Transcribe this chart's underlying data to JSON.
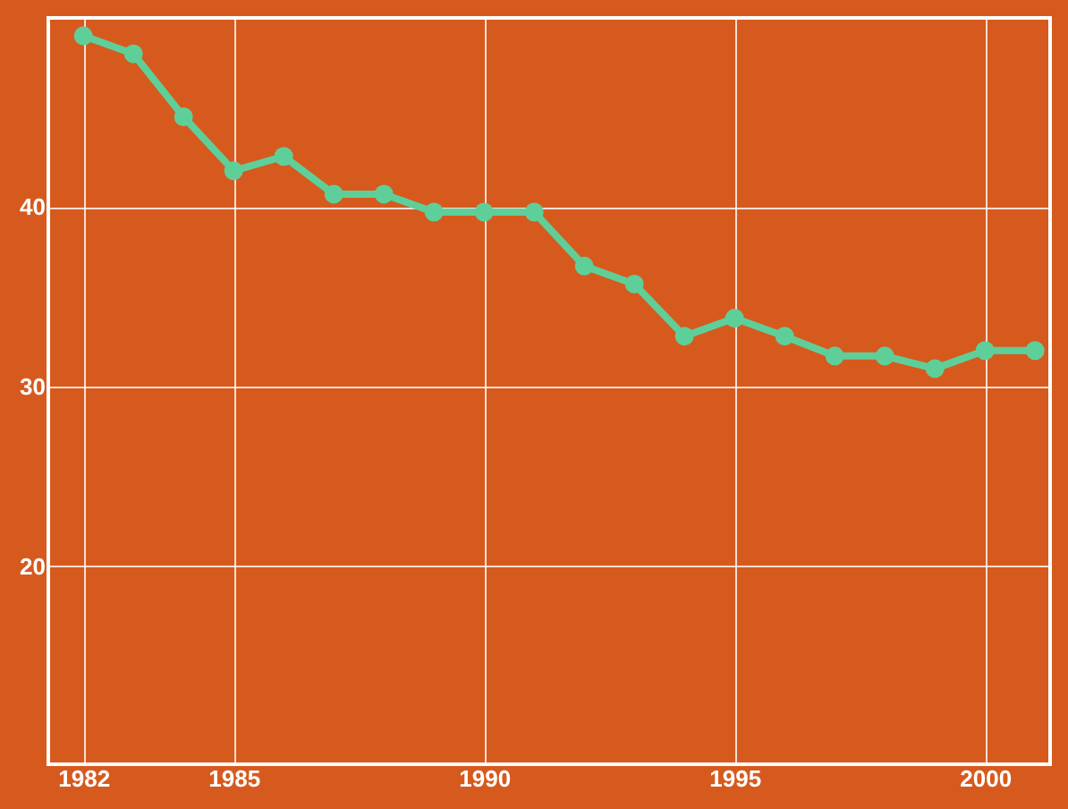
{
  "chart_data": {
    "type": "line",
    "x": [
      1982,
      1983,
      1984,
      1985,
      1986,
      1987,
      1988,
      1989,
      1990,
      1991,
      1992,
      1993,
      1994,
      1995,
      1996,
      1997,
      1998,
      1999,
      2000,
      2001
    ],
    "series": [
      {
        "color": "#5fcf9a",
        "values": [
          49.5,
          48.5,
          45,
          42,
          42.8,
          40.7,
          40.7,
          39.7,
          39.7,
          39.7,
          36.7,
          35.7,
          32.8,
          33.8,
          32.8,
          31.7,
          31.7,
          31,
          32,
          32
        ]
      }
    ],
    "xlim": [
      1981.3,
      2001.3
    ],
    "xticks": [
      1982,
      1985,
      1990,
      1995,
      2000
    ],
    "ylim": [
      9,
      50.5
    ],
    "yticks": [
      20,
      30,
      40
    ],
    "grid": true,
    "marker": "circle",
    "line_style": "solid",
    "legend": false
  }
}
